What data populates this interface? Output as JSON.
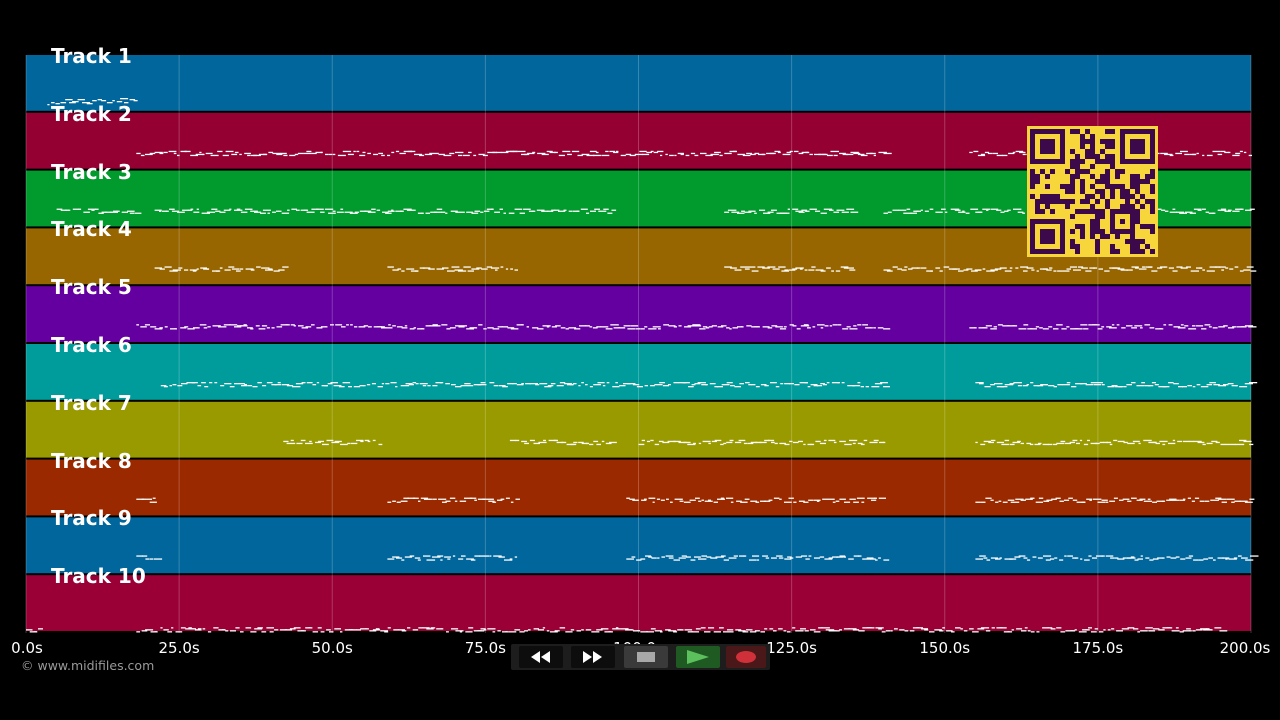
{
  "copyright": "© www.midifiles.com",
  "timeline": {
    "ticks": [
      "0.0s",
      "25.0s",
      "50.0s",
      "75.0s",
      "100.0s",
      "125.0s",
      "150.0s",
      "175.0s",
      "200.0s"
    ],
    "tick_values": [
      0,
      25,
      50,
      75,
      100,
      125,
      150,
      175,
      200
    ],
    "range": [
      0,
      200
    ]
  },
  "tracks": [
    {
      "label": "Track 1",
      "color": "#00669c"
    },
    {
      "label": "Track 2",
      "color": "#950033"
    },
    {
      "label": "Track 3",
      "color": "#009a2d"
    },
    {
      "label": "Track 4",
      "color": "#976600"
    },
    {
      "label": "Track 5",
      "color": "#6400a0"
    },
    {
      "label": "Track 6",
      "color": "#009c9c"
    },
    {
      "label": "Track 7",
      "color": "#999a00"
    },
    {
      "label": "Track 8",
      "color": "#9a2900"
    },
    {
      "label": "Track 9",
      "color": "#00669c"
    },
    {
      "label": "Track 10",
      "color": "#9a0036"
    }
  ],
  "transport": {
    "buttons": [
      {
        "name": "rewind-button",
        "icon": "rewind-icon"
      },
      {
        "name": "fast-forward-button",
        "icon": "fast-forward-icon"
      },
      {
        "name": "stop-button",
        "icon": "stop-icon"
      },
      {
        "name": "play-button",
        "icon": "play-icon"
      },
      {
        "name": "record-button",
        "icon": "record-icon"
      }
    ]
  },
  "colors": {
    "background": "#000000",
    "qr_background": "#f6d63a",
    "qr_modules": "#3c0a4a",
    "play_green": "#3a9a3a",
    "record_red": "#d0303a"
  }
}
